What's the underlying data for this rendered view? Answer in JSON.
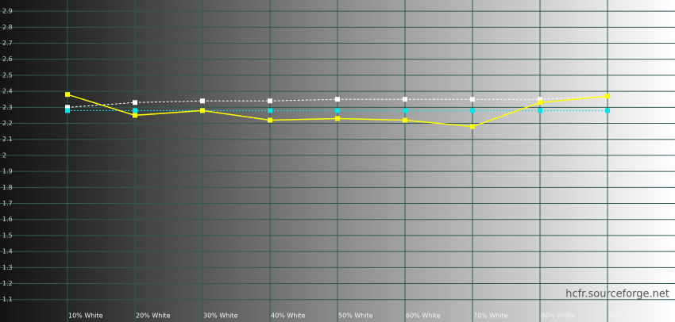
{
  "chart_data": {
    "type": "line",
    "categories": [
      "10% White",
      "20% White",
      "30% White",
      "40% White",
      "50% White",
      "60% White",
      "70% White",
      "80% White",
      "90% White"
    ],
    "series": [
      {
        "color": "#ffffff",
        "style": "dashed",
        "values": [
          2.3,
          2.33,
          2.34,
          2.34,
          2.35,
          2.35,
          2.35,
          2.35,
          2.37
        ]
      },
      {
        "color": "#00e5e5",
        "style": "dotted",
        "values": [
          2.28,
          2.28,
          2.28,
          2.28,
          2.28,
          2.28,
          2.28,
          2.28,
          2.28
        ]
      },
      {
        "color": "#ffff00",
        "style": "solid",
        "values": [
          2.38,
          2.25,
          2.28,
          2.22,
          2.23,
          2.22,
          2.18,
          2.33,
          2.37
        ]
      }
    ],
    "ylim": [
      0.96,
      2.97
    ],
    "yticks": [
      1.1,
      1.2,
      1.3,
      1.4,
      1.5,
      1.6,
      1.7,
      1.8,
      1.9,
      2,
      2.1,
      2.2,
      2.3,
      2.4,
      2.5,
      2.6,
      2.7,
      2.8,
      2.9
    ],
    "grid": true,
    "watermark": "hcfr.sourceforge.net"
  }
}
